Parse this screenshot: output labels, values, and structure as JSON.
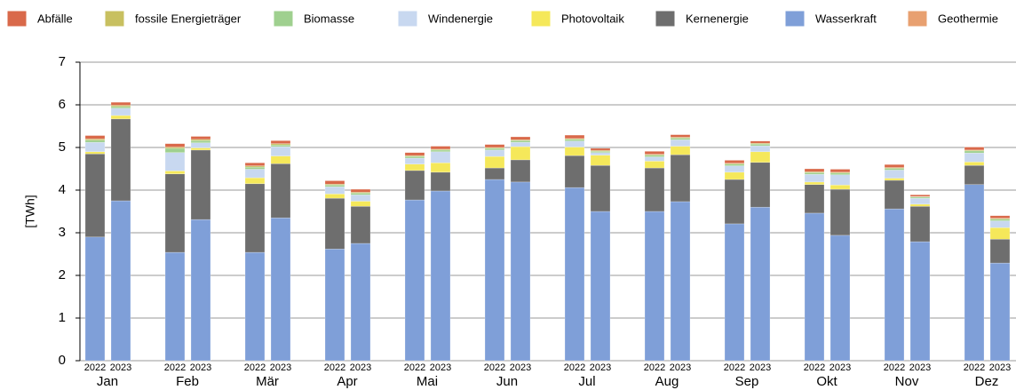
{
  "chart_data": {
    "type": "stacked-grouped-bar",
    "ylabel": "[TWh]",
    "groups": [
      "Jan",
      "Feb",
      "Mär",
      "Apr",
      "Mai",
      "Jun",
      "Jul",
      "Aug",
      "Sep",
      "Okt",
      "Nov",
      "Dez"
    ],
    "subcategories": [
      "2022",
      "2023"
    ],
    "ylim": [
      0,
      7
    ],
    "yticks": [
      0,
      1,
      2,
      3,
      4,
      5,
      6,
      7
    ],
    "grid": true,
    "legend": "top",
    "series": [
      {
        "name": "Wasserkraft",
        "color": "#7f9fd8",
        "values": [
          2.9,
          3.75,
          2.54,
          3.31,
          2.54,
          3.35,
          2.62,
          2.75,
          3.77,
          3.98,
          4.25,
          4.19,
          4.06,
          3.5,
          3.5,
          3.73,
          3.21,
          3.6,
          3.46,
          2.94,
          3.56,
          2.79,
          4.13,
          2.29
        ]
      },
      {
        "name": "Kernenergie",
        "color": "#6e6e6e",
        "values": [
          1.95,
          1.92,
          1.84,
          1.63,
          1.61,
          1.27,
          1.19,
          0.87,
          0.69,
          0.44,
          0.27,
          0.52,
          0.75,
          1.08,
          1.02,
          1.1,
          1.04,
          1.05,
          0.67,
          1.08,
          0.67,
          0.83,
          0.45,
          0.56
        ]
      },
      {
        "name": "Photovoltaik",
        "color": "#f5e85a",
        "values": [
          0.05,
          0.08,
          0.07,
          0.05,
          0.14,
          0.18,
          0.1,
          0.12,
          0.15,
          0.22,
          0.27,
          0.31,
          0.2,
          0.24,
          0.16,
          0.2,
          0.17,
          0.25,
          0.06,
          0.1,
          0.05,
          0.05,
          0.08,
          0.27
        ]
      },
      {
        "name": "Windenergie",
        "color": "#c8d8f0",
        "values": [
          0.22,
          0.17,
          0.43,
          0.12,
          0.2,
          0.22,
          0.17,
          0.15,
          0.14,
          0.26,
          0.15,
          0.1,
          0.14,
          0.06,
          0.1,
          0.15,
          0.15,
          0.14,
          0.18,
          0.24,
          0.19,
          0.14,
          0.21,
          0.16
        ]
      },
      {
        "name": "Biomasse",
        "color": "#9fd08f",
        "values": [
          0.05,
          0.04,
          0.1,
          0.05,
          0.05,
          0.04,
          0.04,
          0.04,
          0.04,
          0.04,
          0.04,
          0.04,
          0.04,
          0.03,
          0.04,
          0.04,
          0.04,
          0.04,
          0.04,
          0.04,
          0.04,
          0.03,
          0.05,
          0.04
        ]
      },
      {
        "name": "fossile Energieträger",
        "color": "#c8c060",
        "values": [
          0.03,
          0.03,
          0.03,
          0.03,
          0.03,
          0.03,
          0.02,
          0.02,
          0.02,
          0.02,
          0.02,
          0.02,
          0.02,
          0.02,
          0.02,
          0.02,
          0.02,
          0.02,
          0.02,
          0.02,
          0.02,
          0.01,
          0.02,
          0.02
        ]
      },
      {
        "name": "Abfälle",
        "color": "#d9694a",
        "values": [
          0.08,
          0.07,
          0.08,
          0.07,
          0.07,
          0.07,
          0.08,
          0.07,
          0.07,
          0.07,
          0.07,
          0.07,
          0.08,
          0.05,
          0.07,
          0.06,
          0.07,
          0.05,
          0.07,
          0.07,
          0.07,
          0.04,
          0.07,
          0.06
        ]
      },
      {
        "name": "Geothermie",
        "color": "#e8a070",
        "values": [
          0,
          0,
          0,
          0,
          0,
          0,
          0,
          0,
          0,
          0,
          0,
          0,
          0,
          0,
          0,
          0,
          0,
          0,
          0,
          0,
          0,
          0,
          0,
          0
        ]
      }
    ]
  }
}
